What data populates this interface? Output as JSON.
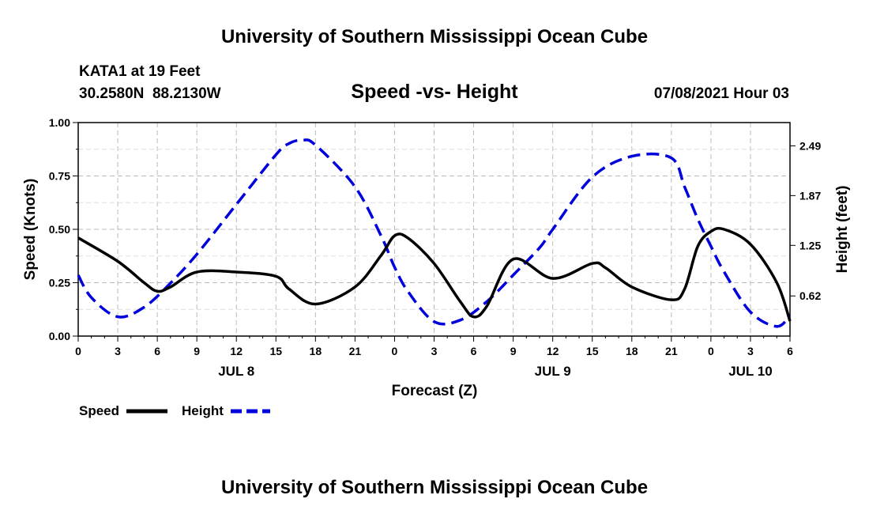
{
  "header": {
    "title": "University of Southern Mississippi Ocean Cube",
    "station": "KATA1 at 19 Feet",
    "coords": "30.2580N  88.2130W",
    "date": "07/08/2021 Hour 03"
  },
  "footer": {
    "title": "University of Southern Mississippi Ocean Cube"
  },
  "chart_data": {
    "type": "line",
    "title": "Speed -vs- Height",
    "xlabel": "Forecast (Z)",
    "ylabel_left": "Speed (Knots)",
    "ylabel_right": "Height (feet)",
    "x_unit": "hours since JUL 8 00Z",
    "xlim": [
      0,
      54
    ],
    "x_ticks": [
      0,
      3,
      6,
      9,
      12,
      15,
      18,
      21,
      24,
      27,
      30,
      33,
      36,
      39,
      42,
      45,
      48,
      51,
      54
    ],
    "x_tick_labels": [
      "0",
      "3",
      "6",
      "9",
      "12",
      "15",
      "18",
      "21",
      "0",
      "3",
      "6",
      "9",
      "12",
      "15",
      "18",
      "21",
      "0",
      "3",
      "6"
    ],
    "date_labels": [
      {
        "x": 12,
        "label": "JUL 8"
      },
      {
        "x": 36,
        "label": "JUL 9"
      },
      {
        "x": 51,
        "label": "JUL 10"
      }
    ],
    "ylim_left": [
      0,
      1
    ],
    "y_ticks_left": [
      0,
      0.25,
      0.5,
      0.75,
      1.0
    ],
    "y_tick_labels_left": [
      "0.00",
      "0.25",
      "0.50",
      "0.75",
      "1.00"
    ],
    "ylim_right": [
      0.12,
      2.78
    ],
    "y_ticks_right": [
      0.62,
      1.25,
      1.87,
      2.49
    ],
    "y_tick_labels_right": [
      "0.62",
      "1.25",
      "1.87",
      "2.49"
    ],
    "grid": true,
    "legend": "bottom-left",
    "series": [
      {
        "name": "Speed",
        "axis": "left",
        "color": "#000000",
        "style": "solid",
        "x": [
          0,
          3,
          5,
          6,
          7,
          9,
          12,
          15,
          16,
          18,
          21,
          23,
          24,
          25,
          27,
          29,
          30,
          31,
          33,
          36,
          39,
          40,
          42,
          45,
          46,
          47,
          48,
          49,
          51,
          53,
          54
        ],
        "y": [
          0.46,
          0.35,
          0.25,
          0.21,
          0.23,
          0.3,
          0.3,
          0.28,
          0.22,
          0.15,
          0.23,
          0.38,
          0.47,
          0.46,
          0.34,
          0.16,
          0.09,
          0.14,
          0.36,
          0.27,
          0.34,
          0.32,
          0.23,
          0.17,
          0.22,
          0.42,
          0.49,
          0.5,
          0.43,
          0.25,
          0.07
        ]
      },
      {
        "name": "Height",
        "axis": "right",
        "color": "#0000dd",
        "style": "dashed",
        "x": [
          0,
          1,
          3,
          5,
          7,
          9,
          12,
          15,
          16,
          17,
          18,
          21,
          23,
          24,
          25,
          27,
          29,
          31,
          33,
          35,
          36,
          39,
          42,
          45,
          46,
          47,
          48,
          49,
          51,
          53,
          54
        ],
        "y": [
          0.88,
          0.6,
          0.36,
          0.48,
          0.78,
          1.14,
          1.76,
          2.38,
          2.52,
          2.56,
          2.5,
          1.98,
          1.36,
          0.98,
          0.68,
          0.3,
          0.32,
          0.55,
          0.88,
          1.22,
          1.45,
          2.1,
          2.36,
          2.34,
          1.98,
          1.58,
          1.24,
          0.92,
          0.42,
          0.24,
          0.38
        ]
      }
    ]
  }
}
